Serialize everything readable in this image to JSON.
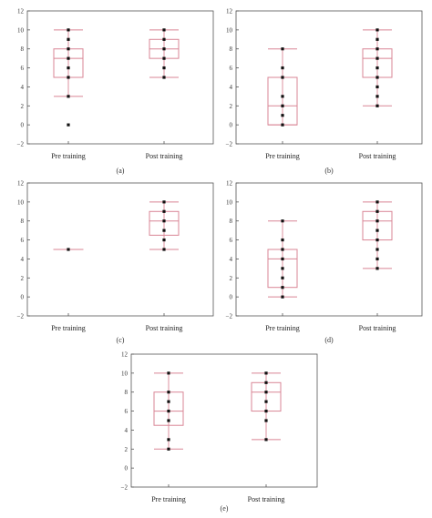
{
  "colors": {
    "box": "#d98595",
    "point": "#111111",
    "frame": "#555555"
  },
  "chart_data": [
    {
      "type": "box",
      "panel_label": "(a)",
      "categories": [
        "Pre training",
        "Post training"
      ],
      "y_range": [
        -2,
        12
      ],
      "y_ticks": [
        "−2",
        "0",
        "2",
        "4",
        "6",
        "8",
        "10",
        "12"
      ],
      "series": [
        {
          "box": {
            "whisker_low": 3,
            "q1": 5,
            "median": 7,
            "q3": 8,
            "whisker_high": 10
          },
          "points": [
            0,
            3,
            5,
            6,
            7,
            8,
            9,
            10
          ]
        },
        {
          "box": {
            "whisker_low": 5,
            "q1": 7,
            "median": 8,
            "q3": 9,
            "whisker_high": 10
          },
          "points": [
            5,
            6,
            7,
            8,
            9,
            10
          ]
        }
      ]
    },
    {
      "type": "box",
      "panel_label": "(b)",
      "categories": [
        "Pre training",
        "Post training"
      ],
      "y_range": [
        -2,
        12
      ],
      "y_ticks": [
        "−2",
        "0",
        "2",
        "4",
        "6",
        "8",
        "10",
        "12"
      ],
      "series": [
        {
          "box": {
            "whisker_low": 0,
            "q1": 0,
            "median": 2,
            "q3": 5,
            "whisker_high": 8
          },
          "points": [
            0,
            1,
            2,
            3,
            5,
            6,
            8
          ]
        },
        {
          "box": {
            "whisker_low": 2,
            "q1": 5,
            "median": 7,
            "q3": 8,
            "whisker_high": 10
          },
          "points": [
            2,
            3,
            4,
            5,
            6,
            7,
            8,
            9,
            10
          ]
        }
      ]
    },
    {
      "type": "box",
      "panel_label": "(c)",
      "categories": [
        "Pre training",
        "Post training"
      ],
      "y_range": [
        -2,
        12
      ],
      "y_ticks": [
        "−2",
        "0",
        "2",
        "4",
        "6",
        "8",
        "10",
        "12"
      ],
      "series": [
        {
          "box": {
            "whisker_low": 5,
            "q1": 5,
            "median": 5,
            "q3": 5,
            "whisker_high": 5
          },
          "points": [
            5
          ]
        },
        {
          "box": {
            "whisker_low": 5,
            "q1": 6.5,
            "median": 8,
            "q3": 9,
            "whisker_high": 10
          },
          "points": [
            5,
            6,
            7,
            8,
            9,
            10
          ]
        }
      ]
    },
    {
      "type": "box",
      "panel_label": "(d)",
      "categories": [
        "Pre training",
        "Post training"
      ],
      "y_range": [
        -2,
        12
      ],
      "y_ticks": [
        "−2",
        "0",
        "2",
        "4",
        "6",
        "8",
        "10",
        "12"
      ],
      "series": [
        {
          "box": {
            "whisker_low": 0,
            "q1": 1,
            "median": 4,
            "q3": 5,
            "whisker_high": 8
          },
          "points": [
            0,
            1,
            2,
            3,
            4,
            5,
            6,
            8
          ]
        },
        {
          "box": {
            "whisker_low": 3,
            "q1": 6,
            "median": 8,
            "q3": 9,
            "whisker_high": 10
          },
          "points": [
            3,
            4,
            5,
            6,
            7,
            8,
            9,
            10
          ]
        }
      ]
    },
    {
      "type": "box",
      "panel_label": "(e)",
      "categories": [
        "Pre training",
        "Post training"
      ],
      "y_range": [
        -2,
        12
      ],
      "y_ticks": [
        "−2",
        "0",
        "2",
        "4",
        "6",
        "8",
        "10",
        "12"
      ],
      "series": [
        {
          "box": {
            "whisker_low": 2,
            "q1": 4.5,
            "median": 6,
            "q3": 8,
            "whisker_high": 10
          },
          "points": [
            2,
            3,
            5,
            6,
            7,
            8,
            10
          ]
        },
        {
          "box": {
            "whisker_low": 3,
            "q1": 6,
            "median": 8,
            "q3": 9,
            "whisker_high": 10
          },
          "points": [
            3,
            5,
            6,
            7,
            8,
            9,
            10
          ]
        }
      ]
    }
  ]
}
